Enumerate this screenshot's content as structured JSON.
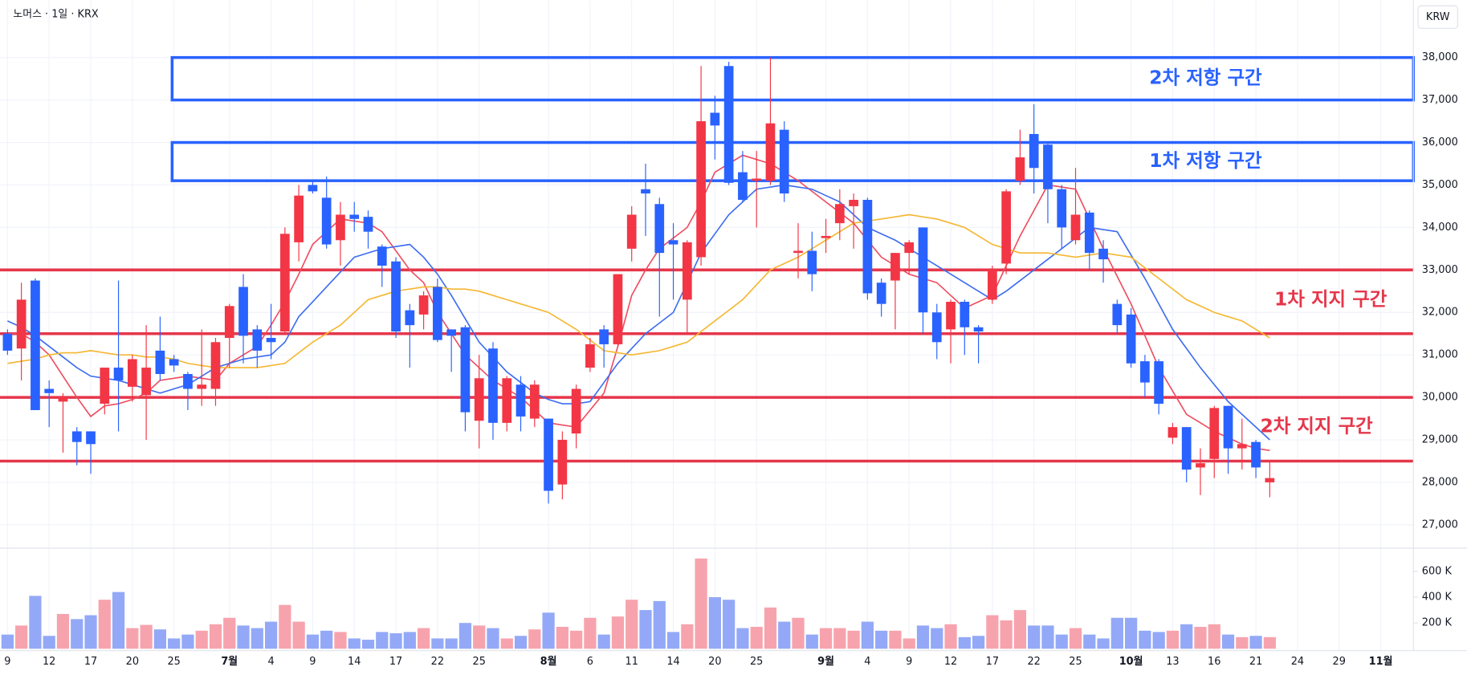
{
  "chart_data": {
    "type": "candlestick",
    "title": "노머스 · 1일 · KRX",
    "currency": "KRW",
    "categories": [
      "9",
      null,
      null,
      "12",
      null,
      null,
      "17",
      null,
      null,
      "20",
      null,
      null,
      "25",
      null,
      null,
      null,
      "7월",
      null,
      null,
      "4",
      null,
      null,
      "9",
      null,
      null,
      "14",
      null,
      null,
      "17",
      null,
      null,
      "22",
      null,
      null,
      "25",
      null,
      null,
      null,
      null,
      "8월",
      null,
      null,
      "6",
      null,
      null,
      "11",
      null,
      null,
      "14",
      null,
      null,
      "20",
      null,
      null,
      "25",
      null,
      null,
      null,
      null,
      "9월",
      null,
      null,
      "4",
      null,
      null,
      "9",
      null,
      null,
      "12",
      null,
      null,
      "17",
      null,
      null,
      "22",
      null,
      null,
      "25",
      null,
      null,
      null,
      "10월",
      null,
      null,
      "13",
      null,
      null,
      "16",
      null,
      null,
      "21",
      null,
      null,
      "24",
      null,
      null,
      "29",
      null,
      null,
      "11월"
    ],
    "open": [
      31500,
      31150,
      32750,
      30200,
      29900,
      29200,
      29200,
      29850,
      30700,
      30250,
      30050,
      31100,
      30900,
      30550,
      30200,
      30200,
      31400,
      32600,
      31600,
      31400,
      31550,
      33650,
      35000,
      34700,
      33700,
      34300,
      34250,
      33550,
      33200,
      32050,
      31950,
      32600,
      31600,
      31650,
      29450,
      31150,
      29400,
      30300,
      29500,
      29500,
      27950,
      29150,
      30700,
      31600,
      31250,
      33500,
      34900,
      34550,
      33700,
      32300,
      33300,
      36700,
      37800,
      35300,
      35100,
      35100,
      36300,
      33400,
      33450,
      33750,
      34100,
      34500,
      34650,
      32700,
      32750,
      33400,
      34000,
      32000,
      31600,
      32250,
      31650,
      32300,
      33150,
      35100,
      36200,
      35950,
      34900,
      33700,
      34350,
      33500,
      32200,
      31950,
      30850,
      30850,
      29050,
      29300,
      28350,
      28550,
      29800,
      28800,
      28950,
      28000,
      null,
      null,
      null,
      null,
      null,
      null,
      null,
      null
    ],
    "high": [
      31600,
      32700,
      32800,
      30400,
      30100,
      29300,
      29200,
      30700,
      32750,
      31000,
      31700,
      31900,
      31000,
      30600,
      31600,
      31400,
      32200,
      32900,
      31700,
      32200,
      34000,
      35000,
      35100,
      35200,
      34600,
      34600,
      34400,
      33600,
      33300,
      32200,
      32500,
      32800,
      31600,
      31700,
      31000,
      31300,
      30500,
      30500,
      30400,
      29500,
      29200,
      30300,
      31400,
      31700,
      32900,
      34500,
      35500,
      34700,
      34100,
      33700,
      37800,
      37100,
      37900,
      35800,
      35800,
      38000,
      36500,
      34100,
      33900,
      34200,
      34900,
      34800,
      34700,
      32800,
      33400,
      33700,
      34000,
      32200,
      32300,
      32300,
      31700,
      33100,
      34900,
      36300,
      36900,
      36000,
      35000,
      35400,
      34400,
      33700,
      32300,
      32100,
      31000,
      30900,
      29400,
      29300,
      28800,
      29800,
      29800,
      29500,
      29000,
      28500,
      null,
      null,
      null,
      null,
      null,
      null,
      null,
      null
    ],
    "low": [
      31000,
      30400,
      29700,
      29300,
      28700,
      28400,
      28200,
      29600,
      29200,
      29900,
      29000,
      30400,
      30600,
      29700,
      29800,
      29800,
      30700,
      30800,
      30700,
      30900,
      31500,
      33200,
      34800,
      33500,
      33100,
      33900,
      33500,
      32600,
      31400,
      30700,
      31600,
      31300,
      30600,
      29200,
      28800,
      29000,
      29200,
      29200,
      29300,
      27500,
      27600,
      28800,
      30600,
      30700,
      31200,
      33200,
      33800,
      31900,
      32300,
      31500,
      33100,
      35600,
      35000,
      34600,
      34000,
      35000,
      34600,
      32800,
      32500,
      33400,
      33700,
      33500,
      32300,
      31900,
      31600,
      32900,
      31500,
      30900,
      30800,
      31000,
      30800,
      32200,
      32900,
      35000,
      34800,
      34100,
      33500,
      33600,
      33000,
      32700,
      31500,
      30700,
      30000,
      29600,
      28900,
      28000,
      27700,
      28100,
      28200,
      28300,
      28100,
      27650,
      null,
      null,
      null,
      null,
      null,
      null,
      null,
      null
    ],
    "close": [
      31100,
      32300,
      29700,
      30100,
      30000,
      28950,
      28900,
      30700,
      30400,
      30900,
      30700,
      30550,
      30750,
      30200,
      30300,
      31300,
      32150,
      31450,
      31100,
      31300,
      33850,
      34750,
      34850,
      33600,
      34300,
      34200,
      33900,
      33100,
      31550,
      31700,
      32400,
      31350,
      31450,
      29650,
      30450,
      29400,
      30450,
      29550,
      30300,
      27800,
      29000,
      30200,
      31250,
      31250,
      32900,
      34300,
      34800,
      33400,
      33600,
      33650,
      36500,
      36400,
      35050,
      34650,
      35150,
      36450,
      34800,
      33450,
      32900,
      33800,
      34550,
      34650,
      32450,
      32200,
      33400,
      33650,
      32000,
      31300,
      32250,
      31650,
      31550,
      33000,
      34850,
      35650,
      35400,
      34900,
      34000,
      34300,
      33400,
      33250,
      31700,
      30800,
      30350,
      29850,
      29300,
      28300,
      28450,
      29750,
      28800,
      28900,
      28350,
      28100,
      null,
      null,
      null,
      null,
      null,
      null,
      null,
      null
    ],
    "volume": [
      110000,
      180000,
      410000,
      100000,
      270000,
      230000,
      260000,
      380000,
      440000,
      160000,
      185000,
      150000,
      80000,
      110000,
      140000,
      190000,
      240000,
      180000,
      160000,
      210000,
      340000,
      210000,
      110000,
      140000,
      130000,
      80000,
      70000,
      130000,
      120000,
      130000,
      160000,
      80000,
      80000,
      200000,
      180000,
      160000,
      80000,
      100000,
      150000,
      280000,
      170000,
      140000,
      240000,
      110000,
      250000,
      380000,
      300000,
      370000,
      130000,
      190000,
      700000,
      400000,
      380000,
      160000,
      170000,
      320000,
      210000,
      240000,
      110000,
      160000,
      160000,
      140000,
      210000,
      140000,
      140000,
      80000,
      180000,
      160000,
      190000,
      90000,
      100000,
      260000,
      220000,
      300000,
      180000,
      180000,
      110000,
      160000,
      110000,
      80000,
      240000,
      240000,
      140000,
      130000,
      140000,
      190000,
      170000,
      190000,
      110000,
      90000,
      100000,
      90000,
      null,
      null,
      null,
      null,
      null,
      null,
      null,
      null
    ],
    "up_color": "#f23645",
    "down_color": "#2962ff",
    "up_volume_color": "#f7a3ad",
    "down_volume_color": "#93a9f7",
    "moving_averages": [
      {
        "color": "#ee4d5f",
        "values": [
          31500,
          31500,
          31300,
          31000,
          30500,
          30000,
          29550,
          29800,
          29850,
          29950,
          30100,
          30400,
          30450,
          30500,
          30450,
          30400,
          30800,
          31000,
          31200,
          31700,
          32250,
          32900,
          33600,
          33900,
          34200,
          34150,
          34100,
          33900,
          33450,
          33000,
          32700,
          32000,
          31500,
          31000,
          30700,
          30400,
          30200,
          30000,
          29700,
          29400,
          29350,
          29300,
          29700,
          30100,
          31200,
          32400,
          33000,
          33500,
          33750,
          34000,
          34600,
          35300,
          35500,
          35700,
          35600,
          35500,
          35300,
          35100,
          34850,
          34600,
          34350,
          34100,
          33700,
          33300,
          33100,
          32900,
          32800,
          32700,
          32400,
          32100,
          32250,
          32400,
          33100,
          33800,
          34400,
          35000,
          34950,
          34900,
          34200,
          33500,
          32850,
          32200,
          31450,
          30700,
          30150,
          29600,
          29400,
          29200,
          29050,
          28900,
          28800,
          28750,
          null,
          null,
          null,
          null,
          null,
          null,
          null,
          null
        ]
      },
      {
        "color": "#3d6df0",
        "values": [
          31800,
          31650,
          31450,
          31200,
          30950,
          30700,
          30500,
          30450,
          30400,
          30300,
          30200,
          30100,
          30200,
          30300,
          30500,
          30700,
          30800,
          30900,
          30950,
          31000,
          31300,
          31900,
          32250,
          32600,
          32950,
          33300,
          33400,
          33500,
          33550,
          33600,
          33300,
          32900,
          32400,
          31850,
          31300,
          30950,
          30600,
          30350,
          30100,
          29950,
          29850,
          29850,
          29900,
          30350,
          30800,
          31150,
          31500,
          31750,
          32000,
          32700,
          33400,
          33850,
          34300,
          34600,
          34900,
          34950,
          35000,
          34950,
          34900,
          34750,
          34600,
          34300,
          34000,
          33850,
          33700,
          33500,
          33300,
          33100,
          32900,
          32700,
          32500,
          32300,
          32500,
          32750,
          33000,
          33250,
          33500,
          33750,
          34000,
          33950,
          33900,
          33350,
          32800,
          32200,
          31600,
          31150,
          30700,
          30300,
          29900,
          29600,
          29300,
          29000,
          null,
          null,
          null,
          null,
          null,
          null,
          null,
          null
        ]
      },
      {
        "color": "#f5b731",
        "values": [
          30800,
          30850,
          30900,
          31000,
          31050,
          31050,
          31100,
          31050,
          31000,
          31000,
          30950,
          30950,
          30900,
          30800,
          30750,
          30700,
          30700,
          30700,
          30700,
          30750,
          30800,
          31050,
          31300,
          31500,
          31700,
          32000,
          32300,
          32400,
          32500,
          32550,
          32600,
          32600,
          32550,
          32550,
          32500,
          32400,
          32300,
          32200,
          32100,
          32000,
          31800,
          31600,
          31350,
          31100,
          31050,
          31000,
          31050,
          31100,
          31200,
          31300,
          31550,
          31800,
          32050,
          32300,
          32650,
          33000,
          33150,
          33300,
          33500,
          33700,
          33900,
          34100,
          34150,
          34200,
          34250,
          34300,
          34250,
          34200,
          34100,
          34000,
          33800,
          33600,
          33500,
          33400,
          33400,
          33400,
          33350,
          33300,
          33350,
          33400,
          33350,
          33300,
          33050,
          32800,
          32550,
          32300,
          32150,
          32000,
          31900,
          31800,
          31600,
          31400,
          null,
          null,
          null,
          null,
          null,
          null,
          null,
          null
        ]
      }
    ],
    "resistance_zones": [
      {
        "label": "2차 저항 구간",
        "range": [
          37000,
          38000
        ]
      },
      {
        "label": "1차 저항 구간",
        "range": [
          35100,
          36000
        ]
      }
    ],
    "support_zones": [
      {
        "label": "1차 지지 구간",
        "levels": [
          33000,
          31500
        ]
      },
      {
        "label": "2차 지지 구간",
        "levels": [
          30000,
          28500
        ]
      }
    ],
    "resistance_color": "#2962ff",
    "support_color": "#e5364a",
    "ylim": [
      26450,
      39350
    ],
    "yticks": [
      {
        "value": 27000,
        "label": "27,000"
      },
      {
        "value": 28000,
        "label": "28,000"
      },
      {
        "value": 29000,
        "label": "29,000"
      },
      {
        "value": 30000,
        "label": "30,000"
      },
      {
        "value": 31000,
        "label": "31,000"
      },
      {
        "value": 32000,
        "label": "32,000"
      },
      {
        "value": 33000,
        "label": "33,000"
      },
      {
        "value": 34000,
        "label": "34,000"
      },
      {
        "value": 35000,
        "label": "35,000"
      },
      {
        "value": 36000,
        "label": "36,000"
      },
      {
        "value": 37000,
        "label": "37,000"
      },
      {
        "value": 38000,
        "label": "38,000"
      }
    ],
    "volume_lim": [
      0,
      780000
    ],
    "volume_ticks": [
      {
        "value": 200000,
        "label": "200 K"
      },
      {
        "value": 400000,
        "label": "400 K"
      },
      {
        "value": 600000,
        "label": "600 K"
      }
    ],
    "grid": true
  }
}
